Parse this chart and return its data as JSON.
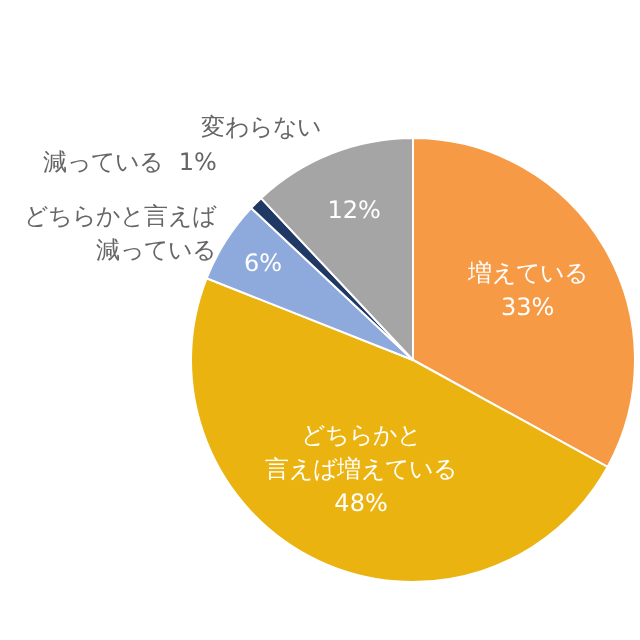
{
  "chart_data": {
    "type": "pie",
    "categories": [
      "増えている",
      "どちらかと言えば増えている",
      "どちらかと言えば減っている",
      "減っている",
      "変わらない"
    ],
    "values": [
      33,
      48,
      6,
      1,
      12
    ],
    "colors": [
      "#f79a45",
      "#ebb30f",
      "#8eaadc",
      "#1f3864",
      "#a5a5a5"
    ],
    "value_labels": [
      "33%",
      "48%",
      "6%",
      "1%",
      "12%"
    ],
    "legend": false
  }
}
